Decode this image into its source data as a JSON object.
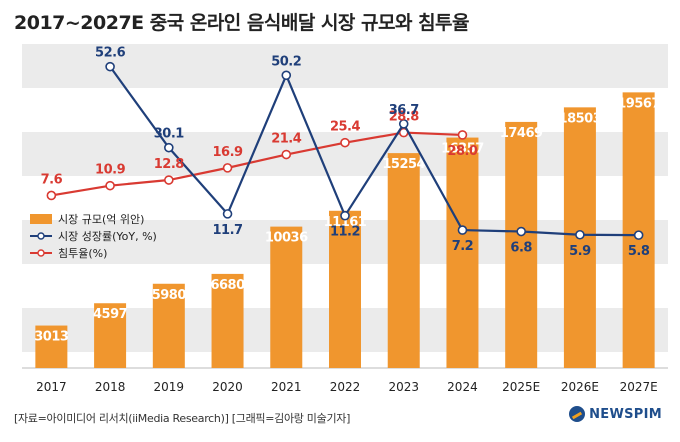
{
  "title": "2017~2027E 중국 온라인 음식배달 시장 규모와 침투율",
  "source": "[자료=아이미디어 리서치(iiMedia Research)] [그래픽=김아랑 미술기자]",
  "logo": {
    "text": "NEWSPIM"
  },
  "colors": {
    "bar": "#f0962e",
    "growth": "#1f3f7a",
    "penetration": "#d93a32",
    "bar_label": "#ffffff",
    "band": "#ebebeb"
  },
  "chart_data": {
    "type": "bar",
    "categories": [
      "2017",
      "2018",
      "2019",
      "2020",
      "2021",
      "2022",
      "2023",
      "2024",
      "2025E",
      "2026E",
      "2027E"
    ],
    "series": [
      {
        "name": "시장 규모(억 위안)",
        "kind": "bar",
        "values": [
          3013,
          4597,
          5980,
          6680,
          10036,
          11161,
          15254,
          16357,
          17469,
          18503,
          19567
        ],
        "labels": [
          "3013",
          "4597",
          "5980",
          "6680",
          "10036",
          "11161",
          "15254",
          "16357",
          "17469",
          "18503",
          "19567"
        ]
      },
      {
        "name": "시장 성장률(YoY, %)",
        "kind": "line",
        "values": [
          null,
          52.6,
          30.1,
          11.7,
          50.2,
          11.2,
          36.7,
          7.2,
          6.8,
          5.9,
          5.8
        ],
        "labels": [
          "",
          "52.6",
          "30.1",
          "11.7",
          "50.2",
          "11.2",
          "36.7",
          "7.2",
          "6.8",
          "5.9",
          "5.8"
        ]
      },
      {
        "name": "침투율(%)",
        "kind": "line",
        "values": [
          7.6,
          10.9,
          12.8,
          16.9,
          21.4,
          25.4,
          28.8,
          28.0,
          null,
          null,
          null
        ],
        "labels": [
          "7.6",
          "10.9",
          "12.8",
          "16.9",
          "21.4",
          "25.4",
          "28.8",
          "28.0",
          "",
          "",
          ""
        ]
      }
    ],
    "ylim_bar": [
      0,
      23000
    ],
    "ylim_growth": [
      0,
      60
    ],
    "ylim_penetration": [
      0,
      60
    ]
  }
}
